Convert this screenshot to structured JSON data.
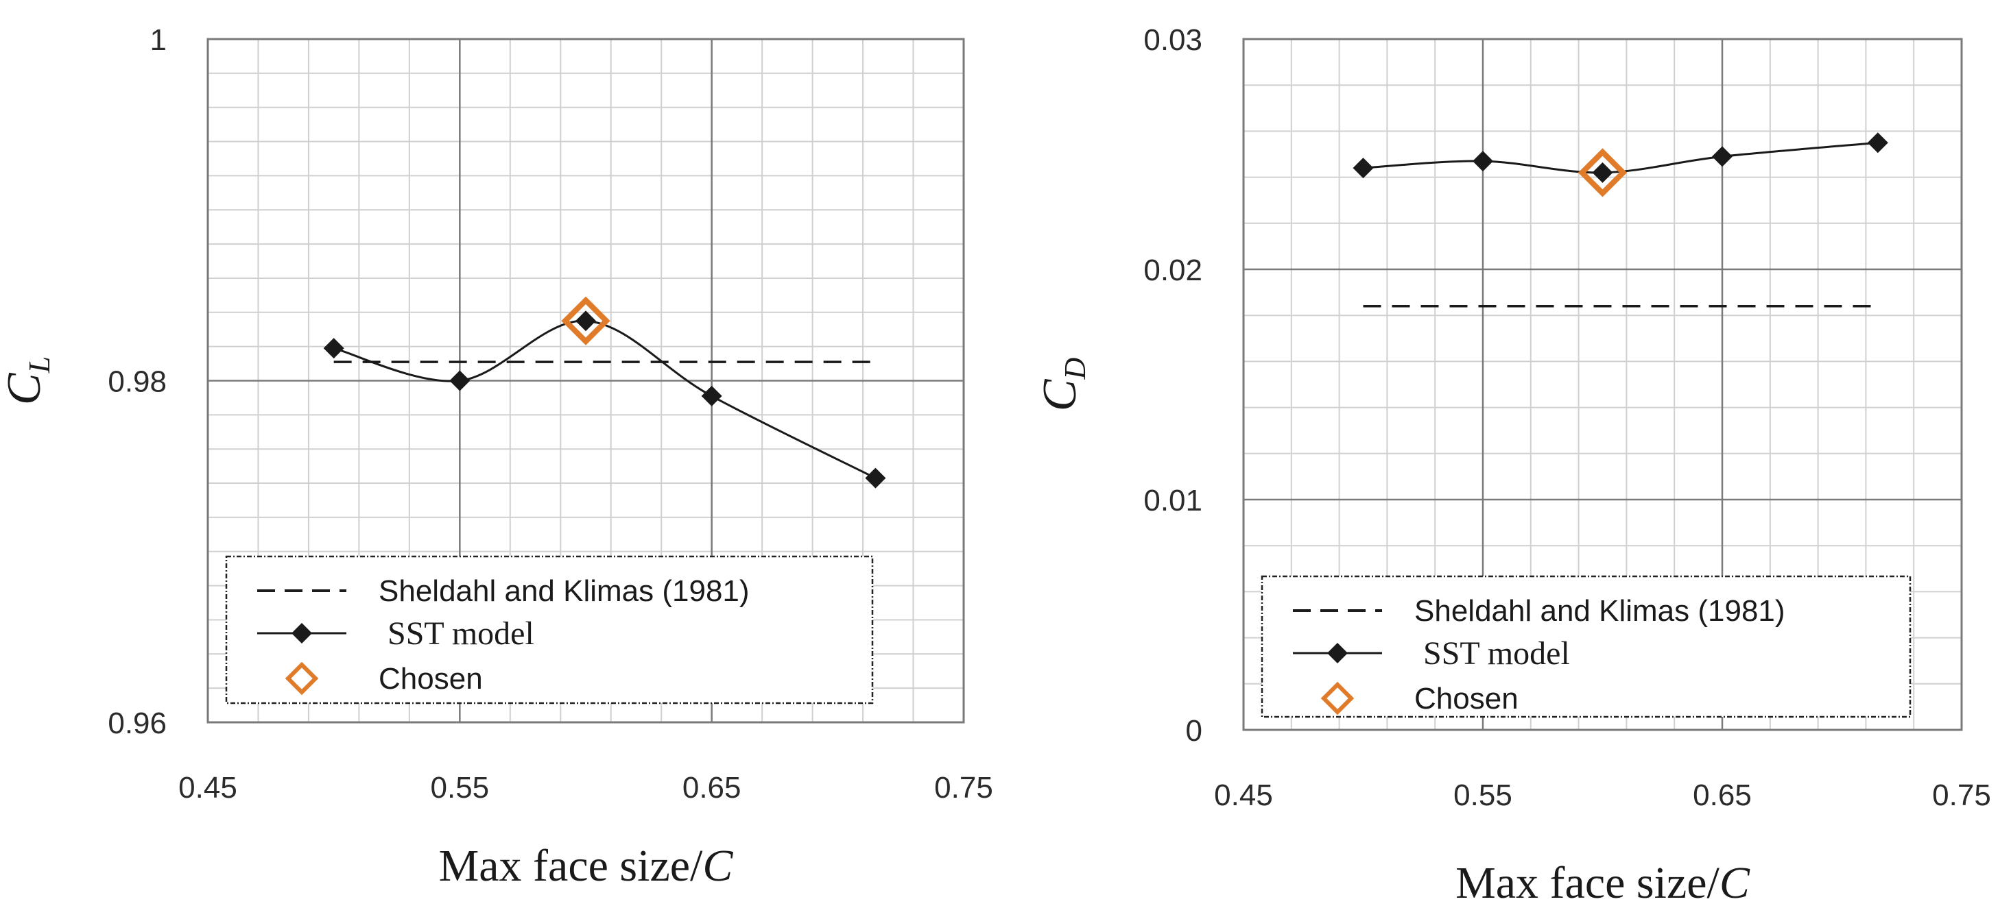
{
  "chart_data": [
    {
      "type": "line",
      "title": "",
      "xlabel": "Max face size/",
      "xlabel_var": "C",
      "ylabel": "C",
      "ylabel_sub": "L",
      "xlim": [
        0.45,
        0.75
      ],
      "ylim": [
        0.96,
        1.0
      ],
      "xticks": [
        "0.45",
        "0.55",
        "0.65",
        "0.75"
      ],
      "yticks": [
        "0.96",
        "0.98",
        "1"
      ],
      "grid": true,
      "legend": "bottom",
      "series": [
        {
          "name": "Sheldahl and Klimas (1981)",
          "style": "dashed",
          "x": [
            0.5,
            0.715
          ],
          "y": [
            0.9811,
            0.9811
          ]
        },
        {
          "name": "SST model",
          "style": "solid-diamond",
          "x": [
            0.5,
            0.55,
            0.6,
            0.65,
            0.715
          ],
          "y": [
            0.9819,
            0.98,
            0.9835,
            0.9791,
            0.9743
          ]
        },
        {
          "name": "Chosen",
          "style": "open-diamond",
          "x": [
            0.6
          ],
          "y": [
            0.9835
          ]
        }
      ]
    },
    {
      "type": "line",
      "title": "",
      "xlabel": "Max face size/",
      "xlabel_var": "C",
      "ylabel": "C",
      "ylabel_sub": "D",
      "xlim": [
        0.45,
        0.75
      ],
      "ylim": [
        0,
        0.03
      ],
      "xticks": [
        "0.45",
        "0.55",
        "0.65",
        "0.75"
      ],
      "yticks": [
        "0",
        "0.01",
        "0.02",
        "0.03"
      ],
      "grid": true,
      "legend": "bottom",
      "series": [
        {
          "name": "Sheldahl and Klimas (1981)",
          "style": "dashed",
          "x": [
            0.5,
            0.715
          ],
          "y": [
            0.0184,
            0.0184
          ]
        },
        {
          "name": "SST model",
          "style": "solid-diamond",
          "x": [
            0.5,
            0.55,
            0.6,
            0.65,
            0.715
          ],
          "y": [
            0.0244,
            0.0247,
            0.0242,
            0.0249,
            0.0255
          ]
        },
        {
          "name": "Chosen",
          "style": "open-diamond",
          "x": [
            0.6
          ],
          "y": [
            0.0242
          ]
        }
      ]
    }
  ],
  "colors": {
    "line": "#1a1a1a",
    "major_grid": "#7a7a7a",
    "minor_grid": "#d0d0d0",
    "chosen": "#e07b2a"
  }
}
